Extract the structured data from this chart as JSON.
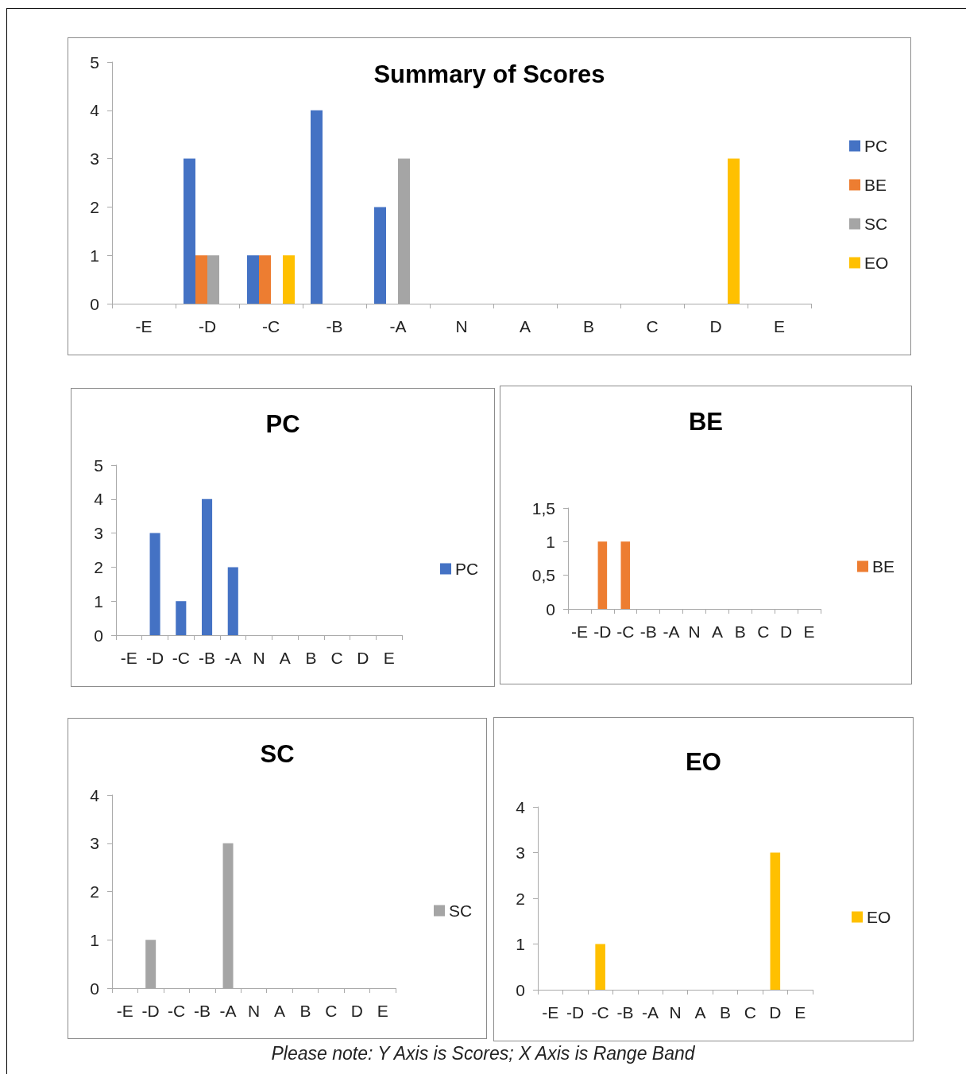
{
  "chart_data": [
    {
      "type": "bar",
      "title": "Summary of Scores",
      "categories": [
        "-E",
        "-D",
        "-C",
        "-B",
        "-A",
        "N",
        "A",
        "B",
        "C",
        "D",
        "E"
      ],
      "series": [
        {
          "name": "PC",
          "color": "#4472c4",
          "values": [
            0,
            3,
            1,
            4,
            2,
            0,
            0,
            0,
            0,
            0,
            0
          ]
        },
        {
          "name": "BE",
          "color": "#ed7d31",
          "values": [
            0,
            1,
            1,
            0,
            0,
            0,
            0,
            0,
            0,
            0,
            0
          ]
        },
        {
          "name": "SC",
          "color": "#a5a5a5",
          "values": [
            0,
            1,
            0,
            0,
            3,
            0,
            0,
            0,
            0,
            0,
            0
          ]
        },
        {
          "name": "EO",
          "color": "#ffc000",
          "values": [
            0,
            0,
            1,
            0,
            0,
            0,
            0,
            0,
            0,
            3,
            0
          ]
        }
      ],
      "ylim": [
        0,
        5
      ],
      "yticks": [
        0,
        1,
        2,
        3,
        4,
        5
      ],
      "grid": false,
      "legend": "right"
    },
    {
      "type": "bar",
      "title": "PC",
      "categories": [
        "-E",
        "-D",
        "-C",
        "-B",
        "-A",
        "N",
        "A",
        "B",
        "C",
        "D",
        "E"
      ],
      "series": [
        {
          "name": "PC",
          "color": "#4472c4",
          "values": [
            0,
            3,
            1,
            4,
            2,
            0,
            0,
            0,
            0,
            0,
            0
          ]
        }
      ],
      "ylim": [
        0,
        5
      ],
      "yticks": [
        0,
        1,
        2,
        3,
        4,
        5
      ],
      "grid": false,
      "legend": "right"
    },
    {
      "type": "bar",
      "title": "BE",
      "categories": [
        "-E",
        "-D",
        "-C",
        "-B",
        "-A",
        "N",
        "A",
        "B",
        "C",
        "D",
        "E"
      ],
      "series": [
        {
          "name": "BE",
          "color": "#ed7d31",
          "values": [
            0,
            1,
            1,
            0,
            0,
            0,
            0,
            0,
            0,
            0,
            0
          ]
        }
      ],
      "ylim": [
        0,
        1.5
      ],
      "yticks": [
        0,
        {
          "value": 0.5,
          "label": "0,5"
        },
        1,
        {
          "value": 1.5,
          "label": "1,5"
        }
      ],
      "grid": false,
      "legend": "right"
    },
    {
      "type": "bar",
      "title": "SC",
      "categories": [
        "-E",
        "-D",
        "-C",
        "-B",
        "-A",
        "N",
        "A",
        "B",
        "C",
        "D",
        "E"
      ],
      "series": [
        {
          "name": "SC",
          "color": "#a5a5a5",
          "values": [
            0,
            1,
            0,
            0,
            3,
            0,
            0,
            0,
            0,
            0,
            0
          ]
        }
      ],
      "ylim": [
        0,
        4
      ],
      "yticks": [
        0,
        1,
        2,
        3,
        4
      ],
      "grid": false,
      "legend": "right"
    },
    {
      "type": "bar",
      "title": "EO",
      "categories": [
        "-E",
        "-D",
        "-C",
        "-B",
        "-A",
        "N",
        "A",
        "B",
        "C",
        "D",
        "E"
      ],
      "series": [
        {
          "name": "EO",
          "color": "#ffc000",
          "values": [
            0,
            0,
            1,
            0,
            0,
            0,
            0,
            0,
            0,
            3,
            0
          ]
        }
      ],
      "ylim": [
        0,
        4
      ],
      "yticks": [
        0,
        1,
        2,
        3,
        4
      ],
      "grid": false,
      "legend": "right",
      "annotations": [
        "Please note: Y Axis is Scores; X Axis is Range Band"
      ]
    }
  ]
}
